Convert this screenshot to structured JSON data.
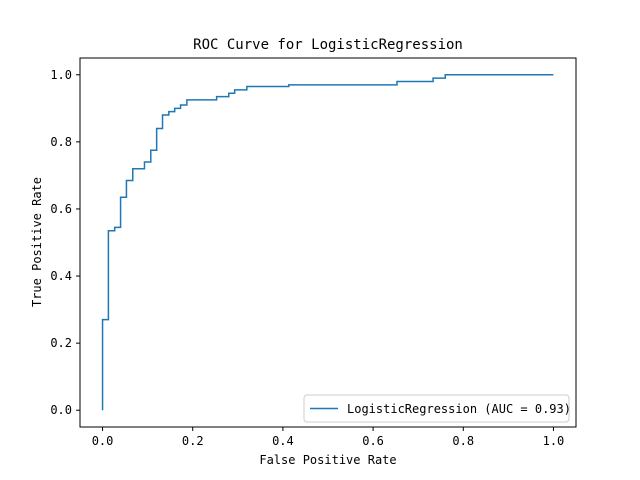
{
  "chart_data": {
    "type": "line",
    "title": "ROC Curve for LogisticRegression",
    "xlabel": "False Positive Rate",
    "ylabel": "True Positive Rate",
    "xlim": [
      -0.05,
      1.05
    ],
    "ylim": [
      -0.05,
      1.05
    ],
    "x_ticks": [
      "0.0",
      "0.2",
      "0.4",
      "0.6",
      "0.8",
      "1.0"
    ],
    "y_ticks": [
      "0.0",
      "0.2",
      "0.4",
      "0.6",
      "0.8",
      "1.0"
    ],
    "grid": false,
    "legend_position": "lower-right",
    "series": [
      {
        "name": "LogisticRegression (AUC = 0.93)",
        "color": "#1f77b4",
        "x": [
          0.0,
          0.0,
          0.0,
          0.013,
          0.013,
          0.027,
          0.027,
          0.04,
          0.04,
          0.053,
          0.053,
          0.067,
          0.067,
          0.093,
          0.093,
          0.107,
          0.107,
          0.12,
          0.12,
          0.133,
          0.133,
          0.147,
          0.147,
          0.16,
          0.16,
          0.173,
          0.173,
          0.187,
          0.187,
          0.253,
          0.253,
          0.28,
          0.28,
          0.293,
          0.293,
          0.32,
          0.32,
          0.413,
          0.413,
          0.653,
          0.653,
          0.733,
          0.733,
          0.76,
          0.76,
          1.0
        ],
        "y": [
          0.0,
          0.27,
          0.27,
          0.27,
          0.535,
          0.535,
          0.545,
          0.545,
          0.635,
          0.635,
          0.685,
          0.685,
          0.72,
          0.72,
          0.74,
          0.74,
          0.775,
          0.775,
          0.84,
          0.84,
          0.88,
          0.88,
          0.89,
          0.89,
          0.9,
          0.9,
          0.91,
          0.91,
          0.925,
          0.925,
          0.935,
          0.935,
          0.945,
          0.945,
          0.955,
          0.955,
          0.965,
          0.965,
          0.97,
          0.97,
          0.98,
          0.98,
          0.99,
          0.99,
          1.0,
          1.0
        ]
      }
    ]
  }
}
